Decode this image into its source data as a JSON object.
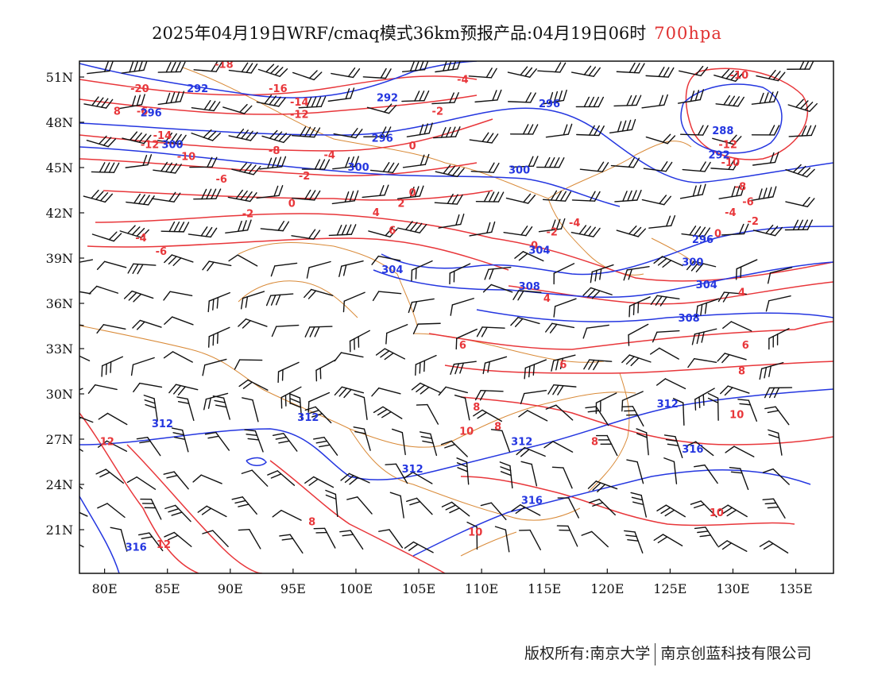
{
  "title": {
    "main": "2025年04月19日WRF/cmaq模式36km预报产品:04月19日06时",
    "level": "700hpa"
  },
  "axes": {
    "lat_labels": [
      "51N",
      "48N",
      "45N",
      "42N",
      "39N",
      "36N",
      "33N",
      "30N",
      "27N",
      "24N",
      "21N"
    ],
    "lat_values": [
      51,
      48,
      45,
      42,
      39,
      36,
      33,
      30,
      27,
      24,
      21
    ],
    "lon_labels": [
      "80E",
      "85E",
      "90E",
      "95E",
      "100E",
      "105E",
      "110E",
      "115E",
      "120E",
      "125E",
      "130E",
      "135E"
    ],
    "lon_values": [
      80,
      85,
      90,
      95,
      100,
      105,
      110,
      115,
      120,
      125,
      130,
      135
    ],
    "lon_range": [
      78,
      138
    ],
    "lat_range": [
      18,
      52
    ]
  },
  "colors": {
    "temperature": "#e8363a",
    "geopotential": "#2436e0",
    "borders": "#d98a38",
    "wind_barbs": "#111111"
  },
  "footer": {
    "copyright": "版权所有:南京大学",
    "company": "南京创蓝科技有限公司"
  },
  "temperature_labels": [
    {
      "text": "-18",
      "lon": 89.5,
      "lat": 51.6
    },
    {
      "text": "-20",
      "lon": 82.8,
      "lat": 50.0
    },
    {
      "text": "-16",
      "lon": 93.8,
      "lat": 50.0
    },
    {
      "text": "-14",
      "lon": 95.5,
      "lat": 49.1
    },
    {
      "text": "-12",
      "lon": 95.5,
      "lat": 48.3
    },
    {
      "text": "-4",
      "lon": 108.5,
      "lat": 50.6
    },
    {
      "text": "-2",
      "lon": 106.5,
      "lat": 48.5
    },
    {
      "text": "0",
      "lon": 104.5,
      "lat": 46.2
    },
    {
      "text": "-6",
      "lon": 83.0,
      "lat": 48.5
    },
    {
      "text": "-14",
      "lon": 84.6,
      "lat": 46.9
    },
    {
      "text": "-12",
      "lon": 83.6,
      "lat": 46.3
    },
    {
      "text": "-10",
      "lon": 86.5,
      "lat": 45.5
    },
    {
      "text": "-8",
      "lon": 93.5,
      "lat": 45.9
    },
    {
      "text": "-4",
      "lon": 97.9,
      "lat": 45.6
    },
    {
      "text": "-2",
      "lon": 95.9,
      "lat": 44.2
    },
    {
      "text": "-6",
      "lon": 89.3,
      "lat": 44.0
    },
    {
      "text": "0",
      "lon": 94.9,
      "lat": 42.4
    },
    {
      "text": "-2",
      "lon": 91.4,
      "lat": 41.7
    },
    {
      "text": "2",
      "lon": 103.6,
      "lat": 42.4
    },
    {
      "text": "4",
      "lon": 101.6,
      "lat": 41.8
    },
    {
      "text": "6",
      "lon": 102.9,
      "lat": 40.6
    },
    {
      "text": "-4",
      "lon": 82.9,
      "lat": 40.1
    },
    {
      "text": "-6",
      "lon": 84.5,
      "lat": 39.2
    },
    {
      "text": "-10",
      "lon": 130.5,
      "lat": 50.9
    },
    {
      "text": "-12",
      "lon": 129.6,
      "lat": 46.3
    },
    {
      "text": "-10",
      "lon": 129.8,
      "lat": 45.1
    },
    {
      "text": "-8",
      "lon": 130.6,
      "lat": 43.5
    },
    {
      "text": "-6",
      "lon": 131.2,
      "lat": 42.5
    },
    {
      "text": "-4",
      "lon": 129.8,
      "lat": 41.8
    },
    {
      "text": "-2",
      "lon": 131.6,
      "lat": 41.2
    },
    {
      "text": "0",
      "lon": 128.8,
      "lat": 40.4
    },
    {
      "text": "-4",
      "lon": 117.4,
      "lat": 41.1
    },
    {
      "text": "-2",
      "lon": 115.6,
      "lat": 40.5
    },
    {
      "text": "0",
      "lon": 114.2,
      "lat": 39.6
    },
    {
      "text": "4",
      "lon": 115.2,
      "lat": 36.1
    },
    {
      "text": "4",
      "lon": 130.7,
      "lat": 36.5
    },
    {
      "text": "6",
      "lon": 108.5,
      "lat": 33.0
    },
    {
      "text": "6",
      "lon": 116.5,
      "lat": 31.7
    },
    {
      "text": "6",
      "lon": 131.0,
      "lat": 33.0
    },
    {
      "text": "8",
      "lon": 130.7,
      "lat": 31.3
    },
    {
      "text": "8",
      "lon": 109.6,
      "lat": 28.9
    },
    {
      "text": "8",
      "lon": 111.3,
      "lat": 27.6
    },
    {
      "text": "10",
      "lon": 108.8,
      "lat": 27.3
    },
    {
      "text": "8",
      "lon": 119.0,
      "lat": 26.6
    },
    {
      "text": "10",
      "lon": 130.3,
      "lat": 28.4
    },
    {
      "text": "10",
      "lon": 128.7,
      "lat": 21.9
    },
    {
      "text": "12",
      "lon": 80.2,
      "lat": 26.6
    },
    {
      "text": "12",
      "lon": 84.7,
      "lat": 19.8
    },
    {
      "text": "8",
      "lon": 96.5,
      "lat": 21.3
    },
    {
      "text": "10",
      "lon": 109.5,
      "lat": 20.6
    },
    {
      "text": "0",
      "lon": 104.5,
      "lat": 43.1
    },
    {
      "text": "8",
      "lon": 81.0,
      "lat": 48.5
    }
  ],
  "geopotential_labels": [
    {
      "text": "292",
      "lon": 87.4,
      "lat": 50.0
    },
    {
      "text": "292",
      "lon": 102.5,
      "lat": 49.4
    },
    {
      "text": "296",
      "lon": 83.7,
      "lat": 48.4
    },
    {
      "text": "296",
      "lon": 102.1,
      "lat": 46.7
    },
    {
      "text": "300",
      "lon": 85.4,
      "lat": 46.3
    },
    {
      "text": "300",
      "lon": 100.2,
      "lat": 44.8
    },
    {
      "text": "296",
      "lon": 115.4,
      "lat": 49.0
    },
    {
      "text": "300",
      "lon": 113.0,
      "lat": 44.6
    },
    {
      "text": "288",
      "lon": 129.2,
      "lat": 47.2
    },
    {
      "text": "292",
      "lon": 128.9,
      "lat": 45.6
    },
    {
      "text": "296",
      "lon": 127.6,
      "lat": 40.0
    },
    {
      "text": "300",
      "lon": 126.8,
      "lat": 38.5
    },
    {
      "text": "304",
      "lon": 114.6,
      "lat": 39.3
    },
    {
      "text": "304",
      "lon": 102.9,
      "lat": 38.0
    },
    {
      "text": "304",
      "lon": 127.9,
      "lat": 37.0
    },
    {
      "text": "308",
      "lon": 113.8,
      "lat": 36.9
    },
    {
      "text": "308",
      "lon": 126.5,
      "lat": 34.8
    },
    {
      "text": "312",
      "lon": 84.6,
      "lat": 27.8
    },
    {
      "text": "312",
      "lon": 96.2,
      "lat": 28.2
    },
    {
      "text": "312",
      "lon": 113.2,
      "lat": 26.6
    },
    {
      "text": "312",
      "lon": 104.5,
      "lat": 24.8
    },
    {
      "text": "312",
      "lon": 124.8,
      "lat": 29.1
    },
    {
      "text": "316",
      "lon": 126.8,
      "lat": 26.1
    },
    {
      "text": "316",
      "lon": 114.0,
      "lat": 22.7
    },
    {
      "text": "316",
      "lon": 82.5,
      "lat": 19.6
    }
  ]
}
